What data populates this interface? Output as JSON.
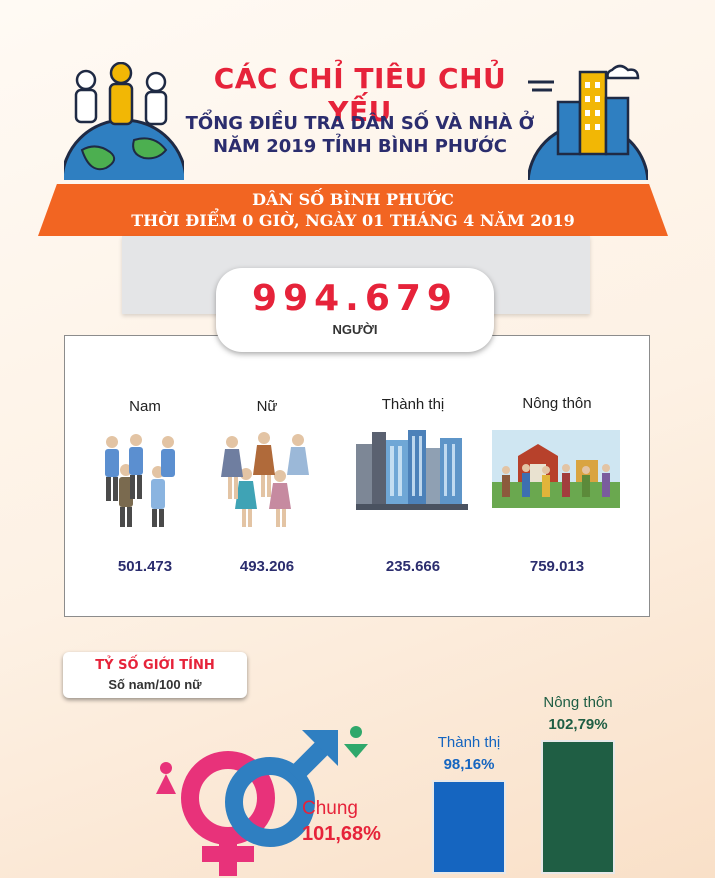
{
  "header": {
    "title": "CÁC CHỈ TIÊU CHỦ YẾU",
    "subtitle_line1": "TỔNG ĐIỀU TRA DÂN SỐ VÀ NHÀ Ở",
    "subtitle_line2": "NĂM 2019 TỈNH BÌNH PHƯỚC"
  },
  "banner": {
    "line1": "DÂN SỐ BÌNH PHƯỚC",
    "line2": "THỜI ĐIỂM 0 GIỜ, NGÀY 01 THÁNG 4 NĂM 2019"
  },
  "population": {
    "total": "994.679",
    "unit": "NGƯỜI"
  },
  "categories": [
    {
      "label": "Nam",
      "value": "501.473"
    },
    {
      "label": "Nữ",
      "value": "493.206"
    },
    {
      "label": "Thành thị",
      "value": "235.666"
    },
    {
      "label": "Nông thôn",
      "value": "759.013"
    }
  ],
  "sex_ratio": {
    "title": "TỶ SỐ GIỚI TÍNH",
    "subtitle": "Số nam/100 nữ",
    "overall_label": "Chung",
    "overall_value": "101,68%",
    "bars": [
      {
        "label": "Thành thị",
        "value": "98,16%",
        "ratio": 98.16,
        "color": "#1565c0"
      },
      {
        "label": "Nông thôn",
        "value": "102,79%",
        "ratio": 102.79,
        "color": "#1f5e44"
      }
    ]
  },
  "colors": {
    "accent_red": "#e6233a",
    "banner_orange": "#f26522",
    "navy": "#2b2d6e",
    "male_blue": "#2f7fc1",
    "female_pink": "#e8327a"
  }
}
